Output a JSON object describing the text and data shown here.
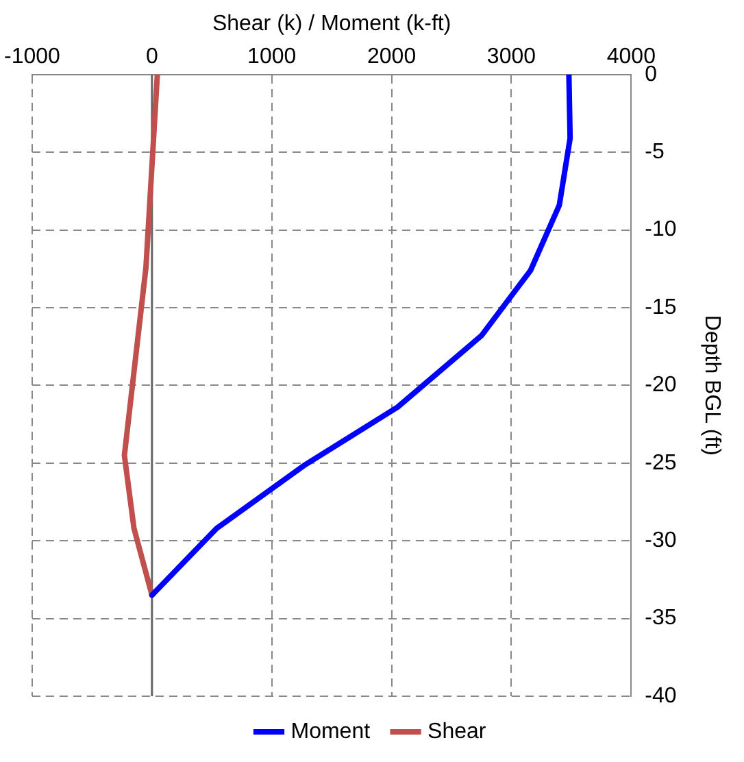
{
  "chart_data": {
    "type": "line",
    "xlabel": "Shear (k) / Moment (k-ft)",
    "ylabel": "Depth BGL (ft)",
    "xlim": [
      -1000,
      4000
    ],
    "xticks": [
      -1000,
      0,
      1000,
      2000,
      3000,
      4000
    ],
    "ylim": [
      -40,
      0
    ],
    "yticks": [
      0,
      -5,
      -10,
      -15,
      -20,
      -25,
      -30,
      -35,
      -40
    ],
    "grid": true,
    "legend": "bottom",
    "marker": "none",
    "line_style": "solid",
    "series": [
      {
        "name": "Moment",
        "color": "#0000ff",
        "x": [
          3480,
          3490,
          3400,
          3160,
          2750,
          2050,
          1280,
          540,
          0
        ],
        "values": [
          0,
          -4.1,
          -8.4,
          -12.6,
          -16.8,
          -21.4,
          -25.1,
          -29.2,
          -33.5
        ]
      },
      {
        "name": "Shear",
        "color": "#c0504d",
        "x": [
          45,
          -50,
          -230,
          -150,
          0
        ],
        "values": [
          0,
          -12.4,
          -24.5,
          -29.2,
          -33.5
        ]
      }
    ]
  }
}
